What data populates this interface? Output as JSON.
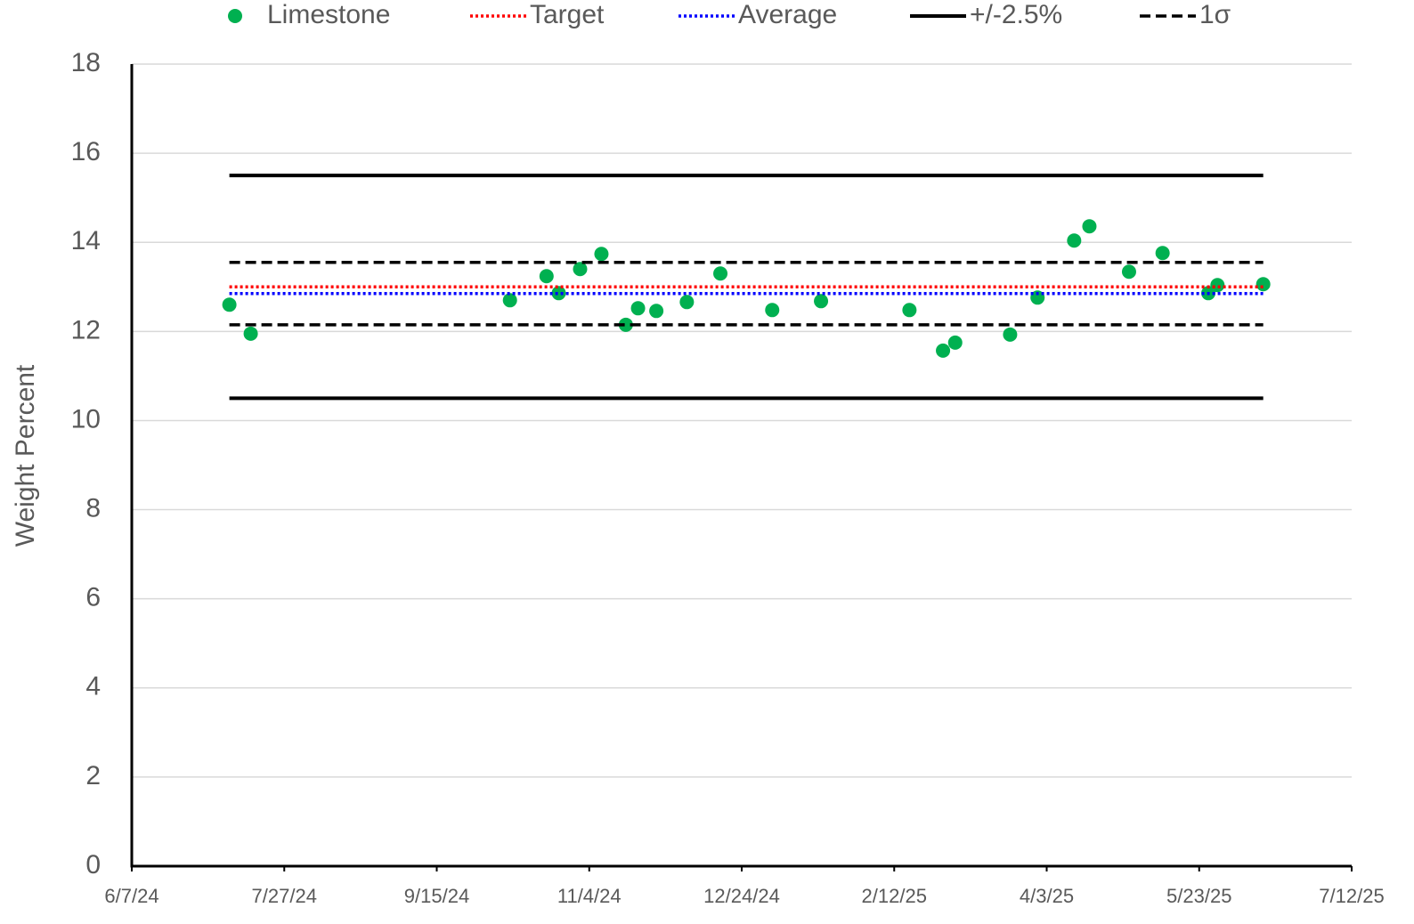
{
  "chart_data": {
    "type": "scatter",
    "y_label": "Weight Percent",
    "legend": "top",
    "grid": true,
    "xlim": [
      "2024-06-07",
      "2025-07-12"
    ],
    "xticks": [
      {
        "value": "2024-06-07",
        "label": "6/7/24"
      },
      {
        "value": "2024-07-27",
        "label": "7/27/24"
      },
      {
        "value": "2024-09-15",
        "label": "9/15/24"
      },
      {
        "value": "2024-11-04",
        "label": "11/4/24"
      },
      {
        "value": "2024-12-24",
        "label": "12/24/24"
      },
      {
        "value": "2025-02-12",
        "label": "2/12/25"
      },
      {
        "value": "2025-04-03",
        "label": "4/3/25"
      },
      {
        "value": "2025-05-23",
        "label": "5/23/25"
      },
      {
        "value": "2025-07-12",
        "label": "7/12/25"
      }
    ],
    "ylim": [
      0,
      18
    ],
    "yticks": [
      0,
      2,
      4,
      6,
      8,
      10,
      12,
      14,
      16,
      18
    ],
    "series": [
      {
        "name": "Limestone",
        "kind": "points",
        "color": "#00b050",
        "x": [
          "2024-07-09",
          "2024-07-16",
          "2024-10-09",
          "2024-10-21",
          "2024-10-25",
          "2024-11-01",
          "2024-11-08",
          "2024-11-16",
          "2024-11-20",
          "2024-11-26",
          "2024-12-06",
          "2024-12-17",
          "2025-01-03",
          "2025-01-19",
          "2025-02-17",
          "2025-02-28",
          "2025-03-04",
          "2025-03-22",
          "2025-03-31",
          "2025-04-12",
          "2025-04-17",
          "2025-04-30",
          "2025-05-11",
          "2025-05-26",
          "2025-05-29",
          "2025-06-13"
        ],
        "values": [
          12.6,
          11.95,
          12.7,
          13.24,
          12.86,
          13.4,
          13.74,
          12.15,
          12.52,
          12.46,
          12.66,
          13.3,
          12.48,
          12.68,
          12.48,
          11.57,
          11.75,
          11.93,
          12.76,
          14.04,
          14.36,
          13.34,
          13.76,
          12.86,
          13.04,
          13.06
        ]
      },
      {
        "name": "Target",
        "kind": "hline",
        "style": "dotted",
        "color": "#ff0000",
        "span": [
          "2024-07-09",
          "2025-06-13"
        ],
        "values": [
          13.0
        ]
      },
      {
        "name": "Average",
        "kind": "hline",
        "style": "dotted",
        "color": "#0000ff",
        "span": [
          "2024-07-09",
          "2025-06-13"
        ],
        "values": [
          12.85
        ]
      },
      {
        "name": "+/-2.5%",
        "kind": "hline",
        "style": "solid",
        "color": "#000000",
        "span": [
          "2024-07-09",
          "2025-06-13"
        ],
        "values": [
          15.5,
          10.5
        ]
      },
      {
        "name": "1σ",
        "kind": "hline",
        "style": "dashed",
        "color": "#000000",
        "span": [
          "2024-07-09",
          "2025-06-13"
        ],
        "values": [
          13.55,
          12.15
        ]
      }
    ]
  }
}
